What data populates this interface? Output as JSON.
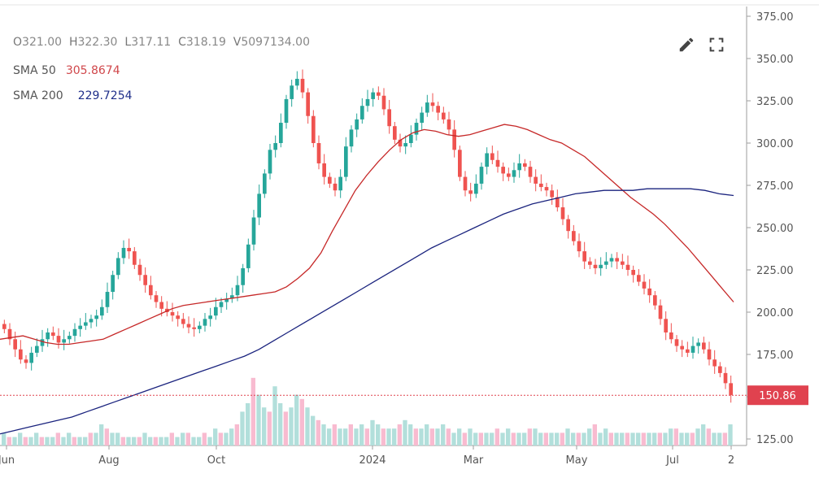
{
  "legend": {
    "ohlc": {
      "o_label": "O",
      "o": "321.00",
      "h_label": "H",
      "h": "322.30",
      "l_label": "L",
      "l": "317.11",
      "c_label": "C",
      "c": "318.19",
      "v_label": "V",
      "v": "5097134.00"
    },
    "sma50": {
      "label": "SMA 50",
      "value": "305.8674"
    },
    "sma200": {
      "label": "SMA 200",
      "value": "229.7254"
    }
  },
  "toolbar": {
    "edit_icon": "pencil-icon",
    "expand_icon": "expand-icon"
  },
  "colors": {
    "up": "#26a69a",
    "down": "#ef5350",
    "sma50": "#c62828",
    "sma200": "#1a237e",
    "price_tag": "#e0424f",
    "volume_up": "#b2dfdb",
    "volume_down": "#f8bbd0"
  },
  "chart_data": {
    "type": "candlestick",
    "y_ticks": [
      "125.00",
      "150.00",
      "175.00",
      "200.00",
      "225.00",
      "250.00",
      "275.00",
      "300.00",
      "325.00",
      "350.00",
      "375.00"
    ],
    "ylim": [
      125,
      375
    ],
    "x_ticks": [
      "Jun",
      "Aug",
      "Oct",
      "2024",
      "Mar",
      "May",
      "Jul",
      "2"
    ],
    "last_price": "150.86",
    "close_series": [
      190,
      184,
      178,
      172,
      170,
      176,
      180,
      184,
      188,
      186,
      182,
      184,
      186,
      190,
      192,
      194,
      196,
      198,
      203,
      212,
      222,
      232,
      238,
      236,
      228,
      222,
      216,
      210,
      206,
      202,
      200,
      198,
      196,
      193,
      191,
      190,
      192,
      196,
      198,
      203,
      206,
      208,
      210,
      216,
      226,
      240,
      256,
      270,
      282,
      296,
      300,
      312,
      326,
      334,
      338,
      330,
      316,
      300,
      288,
      280,
      276,
      272,
      280,
      298,
      308,
      314,
      322,
      326,
      330,
      328,
      320,
      310,
      302,
      298,
      300,
      305,
      312,
      318,
      324,
      322,
      318,
      314,
      308,
      296,
      280,
      272,
      270,
      276,
      286,
      294,
      290,
      286,
      282,
      280,
      284,
      288,
      286,
      280,
      276,
      274,
      272,
      268,
      262,
      255,
      248,
      242,
      236,
      230,
      228,
      226,
      228,
      230,
      232,
      230,
      228,
      225,
      222,
      218,
      214,
      210,
      204,
      196,
      188,
      184,
      180,
      178,
      176,
      180,
      182,
      178,
      172,
      168,
      164,
      158,
      151
    ],
    "sma50_series": [
      184,
      185,
      186,
      184,
      182,
      181,
      181,
      182,
      183,
      184,
      187,
      190,
      193,
      196,
      199,
      202,
      204,
      205,
      206,
      207,
      208,
      209,
      210,
      211,
      212,
      215,
      220,
      226,
      235,
      248,
      260,
      272,
      281,
      289,
      296,
      302,
      306,
      308,
      307,
      305,
      304,
      305,
      307,
      309,
      311,
      310,
      308,
      305,
      302,
      300,
      296,
      292,
      286,
      280,
      274,
      268,
      263,
      258,
      252,
      245,
      238,
      230,
      222,
      214,
      206
    ],
    "sma200_series": [
      128,
      130,
      132,
      134,
      136,
      138,
      141,
      144,
      147,
      150,
      153,
      156,
      159,
      162,
      165,
      168,
      171,
      174,
      178,
      183,
      188,
      193,
      198,
      203,
      208,
      213,
      218,
      223,
      228,
      233,
      238,
      242,
      246,
      250,
      254,
      258,
      261,
      264,
      266,
      268,
      270,
      271,
      272,
      272,
      272,
      273,
      273,
      273,
      273,
      272,
      270,
      269
    ],
    "volume_series": [
      3,
      2,
      2,
      3,
      2,
      2,
      3,
      2,
      2,
      2,
      3,
      2,
      3,
      2,
      2,
      2,
      3,
      3,
      5,
      4,
      3,
      3,
      2,
      2,
      2,
      2,
      3,
      2,
      2,
      2,
      2,
      3,
      2,
      3,
      3,
      2,
      2,
      3,
      2,
      4,
      3,
      3,
      4,
      5,
      8,
      10,
      16,
      12,
      9,
      8,
      14,
      10,
      8,
      9,
      12,
      11,
      9,
      7,
      6,
      5,
      4,
      5,
      4,
      4,
      5,
      4,
      5,
      4,
      6,
      5,
      4,
      4,
      4,
      5,
      6,
      5,
      4,
      4,
      5,
      4,
      4,
      5,
      4,
      3,
      4,
      3,
      4,
      3,
      3,
      3,
      3,
      4,
      3,
      4,
      3,
      3,
      3,
      4,
      4,
      3,
      3,
      3,
      3,
      3,
      4,
      3,
      3,
      3,
      4,
      5,
      3,
      4,
      3,
      3,
      3,
      3,
      3,
      3,
      3,
      3,
      3,
      3,
      3,
      4,
      4,
      3,
      3,
      3,
      4,
      5,
      4,
      3,
      3,
      3,
      5
    ]
  }
}
